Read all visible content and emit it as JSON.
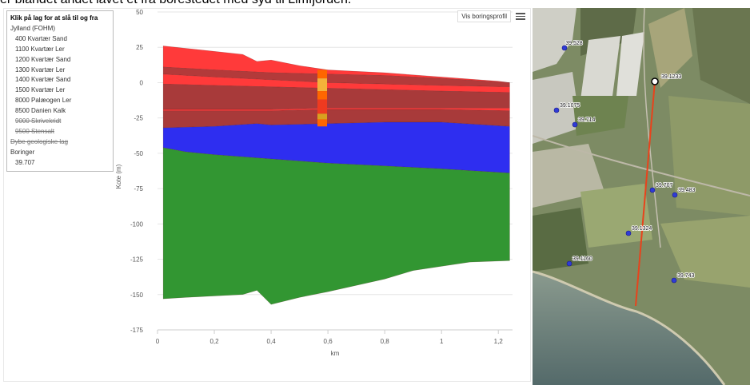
{
  "caption": "er blandet andet lavet et fra borestedet med syd til Limfjorden.",
  "toolbar": {
    "profile_button": "Vis boringsprofil",
    "menu_icon": "hamburger-menu-icon"
  },
  "legend": {
    "title": "Klik på lag for at slå til og fra",
    "group": "Jylland (FOHM)",
    "items": [
      {
        "label": "400 Kvartær Sand",
        "enabled": true
      },
      {
        "label": "1100 Kvartær Ler",
        "enabled": true
      },
      {
        "label": "1200 Kvartær Sand",
        "enabled": true
      },
      {
        "label": "1300 Kvartær Ler",
        "enabled": true
      },
      {
        "label": "1400 Kvartær Sand",
        "enabled": true
      },
      {
        "label": "1500 Kvartær Ler",
        "enabled": true
      },
      {
        "label": "8000 Palæogen Ler",
        "enabled": true
      },
      {
        "label": "8500 Danien Kalk",
        "enabled": true
      },
      {
        "label": "9000 Skrivekridt",
        "enabled": false
      },
      {
        "label": "9500 Stensalt",
        "enabled": false
      }
    ],
    "deep_layers": "Dybe geologiske lag",
    "boreholes_group": "Boringer",
    "borehole_item": "39.707"
  },
  "chart_data": {
    "type": "area",
    "xlabel": "km",
    "ylabel": "Kote (m)",
    "xlim": [
      0,
      1.25
    ],
    "ylim": [
      -175,
      50
    ],
    "xticks": [
      "0",
      "0,2",
      "0,4",
      "0,6",
      "0,8",
      "1",
      "1,2"
    ],
    "yticks": [
      "50",
      "25",
      "0",
      "-25",
      "-50",
      "-75",
      "-100",
      "-125",
      "-150",
      "-175"
    ],
    "layers": [
      {
        "color": "#ff3a3a",
        "top": [
          [
            0.02,
            26
          ],
          [
            0.3,
            20
          ],
          [
            0.35,
            15
          ],
          [
            0.4,
            16
          ],
          [
            0.5,
            12
          ],
          [
            0.6,
            9
          ],
          [
            0.8,
            7
          ],
          [
            1.0,
            4
          ],
          [
            1.2,
            1
          ],
          [
            1.24,
            0
          ]
        ],
        "bottom": [
          [
            0.02,
            11
          ],
          [
            0.2,
            9
          ],
          [
            0.4,
            7
          ],
          [
            0.6,
            6
          ],
          [
            0.8,
            5
          ],
          [
            1.0,
            3
          ],
          [
            1.24,
            0
          ]
        ]
      },
      {
        "color": "#b33a3a",
        "top": [
          [
            0.02,
            11
          ],
          [
            0.2,
            9
          ],
          [
            0.4,
            7
          ],
          [
            0.6,
            6
          ],
          [
            0.8,
            5
          ],
          [
            1.0,
            3
          ],
          [
            1.24,
            0
          ]
        ],
        "bottom": [
          [
            0.02,
            6
          ],
          [
            0.2,
            4
          ],
          [
            0.4,
            2
          ],
          [
            0.6,
            0
          ],
          [
            0.8,
            -1
          ],
          [
            1.0,
            -2
          ],
          [
            1.24,
            -3
          ]
        ]
      },
      {
        "color": "#ff3a3a",
        "top": [
          [
            0.02,
            6
          ],
          [
            0.2,
            4
          ],
          [
            0.4,
            2
          ],
          [
            0.6,
            0
          ],
          [
            0.8,
            -1
          ],
          [
            1.0,
            -2
          ],
          [
            1.24,
            -3
          ]
        ],
        "bottom": [
          [
            0.02,
            -1
          ],
          [
            0.2,
            -2
          ],
          [
            0.4,
            -3
          ],
          [
            0.6,
            -4
          ],
          [
            0.8,
            -5
          ],
          [
            1.0,
            -6
          ],
          [
            1.24,
            -7
          ]
        ]
      },
      {
        "color": "#a83a3a",
        "top": [
          [
            0.02,
            -1
          ],
          [
            0.2,
            -2
          ],
          [
            0.4,
            -3
          ],
          [
            0.6,
            -4
          ],
          [
            0.8,
            -5
          ],
          [
            1.0,
            -6
          ],
          [
            1.24,
            -7
          ]
        ],
        "bottom": [
          [
            0.02,
            -19
          ],
          [
            0.2,
            -19
          ],
          [
            0.4,
            -19
          ],
          [
            0.6,
            -18
          ],
          [
            0.8,
            -18
          ],
          [
            1.0,
            -18
          ],
          [
            1.24,
            -18
          ]
        ]
      },
      {
        "color": "#ff3a3a",
        "top": [
          [
            0.02,
            -19
          ],
          [
            0.2,
            -19
          ],
          [
            0.4,
            -19
          ],
          [
            0.6,
            -18
          ],
          [
            0.8,
            -18
          ],
          [
            1.0,
            -18
          ],
          [
            1.24,
            -18
          ]
        ],
        "bottom": [
          [
            0.02,
            -20
          ],
          [
            0.2,
            -20
          ],
          [
            0.4,
            -20
          ],
          [
            0.6,
            -19
          ],
          [
            0.8,
            -19
          ],
          [
            1.0,
            -19
          ],
          [
            1.24,
            -20
          ]
        ]
      },
      {
        "color": "#a83a3a",
        "top": [
          [
            0.02,
            -20
          ],
          [
            0.2,
            -20
          ],
          [
            0.4,
            -20
          ],
          [
            0.6,
            -19
          ],
          [
            0.8,
            -19
          ],
          [
            1.0,
            -19
          ],
          [
            1.24,
            -20
          ]
        ],
        "bottom": [
          [
            0.02,
            -32
          ],
          [
            0.2,
            -31
          ],
          [
            0.35,
            -29
          ],
          [
            0.4,
            -30
          ],
          [
            0.6,
            -29
          ],
          [
            0.8,
            -28
          ],
          [
            1.0,
            -28
          ],
          [
            1.24,
            -31
          ]
        ]
      },
      {
        "color": "#2e2ef0",
        "top": [
          [
            0.02,
            -32
          ],
          [
            0.2,
            -31
          ],
          [
            0.35,
            -29
          ],
          [
            0.4,
            -30
          ],
          [
            0.6,
            -29
          ],
          [
            0.8,
            -28
          ],
          [
            1.0,
            -28
          ],
          [
            1.24,
            -31
          ]
        ],
        "bottom": [
          [
            0.02,
            -46
          ],
          [
            0.1,
            -49
          ],
          [
            0.2,
            -51
          ],
          [
            0.4,
            -54
          ],
          [
            0.6,
            -57
          ],
          [
            0.8,
            -59
          ],
          [
            1.0,
            -61
          ],
          [
            1.24,
            -64
          ]
        ]
      },
      {
        "color": "#329632",
        "top": [
          [
            0.02,
            -46
          ],
          [
            0.1,
            -49
          ],
          [
            0.2,
            -51
          ],
          [
            0.4,
            -54
          ],
          [
            0.6,
            -57
          ],
          [
            0.8,
            -59
          ],
          [
            1.0,
            -61
          ],
          [
            1.24,
            -64
          ]
        ],
        "bottom": [
          [
            0.02,
            -153
          ],
          [
            0.1,
            -152
          ],
          [
            0.3,
            -150
          ],
          [
            0.35,
            -147
          ],
          [
            0.4,
            -157
          ],
          [
            0.5,
            -152
          ],
          [
            0.6,
            -148
          ],
          [
            0.8,
            -139
          ],
          [
            0.9,
            -133
          ],
          [
            1.0,
            -130
          ],
          [
            1.1,
            -127
          ],
          [
            1.24,
            -126
          ]
        ]
      }
    ],
    "borehole": {
      "x": 0.58,
      "segments": [
        {
          "from": 9,
          "to": 3,
          "color": "#ff6600"
        },
        {
          "from": 3,
          "to": -6,
          "color": "#f4b13a"
        },
        {
          "from": -6,
          "to": -12,
          "color": "#ff6600"
        },
        {
          "from": -12,
          "to": -22,
          "color": "#ee3a20"
        },
        {
          "from": -22,
          "to": -26,
          "color": "#d8a020"
        },
        {
          "from": -26,
          "to": -31,
          "color": "#ff6600"
        }
      ]
    }
  },
  "map": {
    "profile_line_color": "#e8431c",
    "labels": [
      {
        "text": "39.528"
      },
      {
        "text": "39.1233"
      },
      {
        "text": "39.1075"
      },
      {
        "text": "39.714"
      },
      {
        "text": "39.707"
      },
      {
        "text": "39.483"
      },
      {
        "text": "39.1324"
      },
      {
        "text": "39.1160"
      },
      {
        "text": "39.743"
      }
    ]
  }
}
